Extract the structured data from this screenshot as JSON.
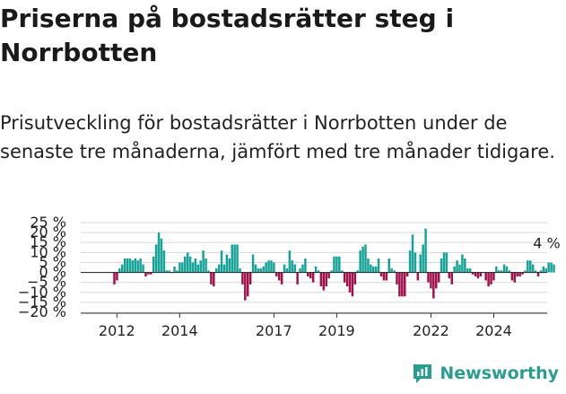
{
  "title": "Priserna på bostadsrätter steg i Norrbotten",
  "subtitle": "Prisutveckling för bostadsrätter i Norrbotten under de senaste tre månaderna, jämfört med tre månader tidigare.",
  "brand": "Newsworthy",
  "colors": {
    "positive": "#14a396",
    "negative": "#a0104a",
    "grid": "#d9d9d9",
    "axis": "#333333",
    "brand": "#2a9d8f"
  },
  "chart_data": {
    "type": "bar",
    "ylim": [
      -20,
      25
    ],
    "yticks": [
      "25 %",
      "20 %",
      "15 %",
      "10 %",
      "5 %",
      "0 %",
      "−5 %",
      "−10 %",
      "−15 %",
      "−20 %"
    ],
    "ytick_values": [
      25,
      20,
      15,
      10,
      5,
      0,
      -5,
      -10,
      -15,
      -20
    ],
    "xticks": [
      {
        "label": "2012",
        "x": 2012.0
      },
      {
        "label": "2014",
        "x": 2014.0
      },
      {
        "label": "2017",
        "x": 2017.0
      },
      {
        "label": "2019",
        "x": 2019.0
      },
      {
        "label": "2022",
        "x": 2022.0
      },
      {
        "label": "2024",
        "x": 2024.0
      }
    ],
    "x_start": 2011.92,
    "x_step": 0.0833,
    "grid": true,
    "annotation": {
      "label": "4 %",
      "value": 4
    },
    "values": [
      -6,
      -4,
      2,
      4,
      7,
      7,
      7,
      6,
      7,
      6,
      7,
      4,
      -2,
      -1,
      -1,
      8,
      14,
      20,
      17,
      11,
      1,
      1,
      0,
      3,
      1,
      5,
      5,
      8,
      10,
      8,
      5,
      7,
      4,
      6,
      11,
      7,
      1,
      -6,
      -7,
      2,
      4,
      11,
      4,
      9,
      7,
      14,
      14,
      14,
      2,
      -6,
      -14,
      -12,
      -6,
      9,
      4,
      2,
      2,
      3,
      5,
      6,
      6,
      5,
      -2,
      -4,
      -6,
      4,
      2,
      11,
      6,
      4,
      -6,
      2,
      4,
      7,
      -2,
      -3,
      -5,
      3,
      1,
      -7,
      -9,
      -7,
      -3,
      1,
      8,
      8,
      8,
      1,
      -5,
      -7,
      -10,
      -12,
      -6,
      1,
      11,
      13,
      14,
      7,
      4,
      3,
      3,
      7,
      -2,
      -4,
      -4,
      7,
      2,
      1,
      -6,
      -12,
      -12,
      -12,
      -2,
      11,
      19,
      10,
      -4,
      9,
      14,
      22,
      -5,
      -8,
      -13,
      -8,
      -5,
      7,
      10,
      10,
      -3,
      -6,
      3,
      6,
      4,
      9,
      7,
      2,
      2,
      -1,
      -2,
      -3,
      -2,
      0,
      -4,
      -7,
      -6,
      -4,
      3,
      1,
      1,
      4,
      3,
      1,
      -4,
      -5,
      -2,
      -2,
      -1,
      1,
      6,
      6,
      4,
      1,
      -2,
      1,
      3,
      2,
      5,
      5,
      4
    ]
  }
}
